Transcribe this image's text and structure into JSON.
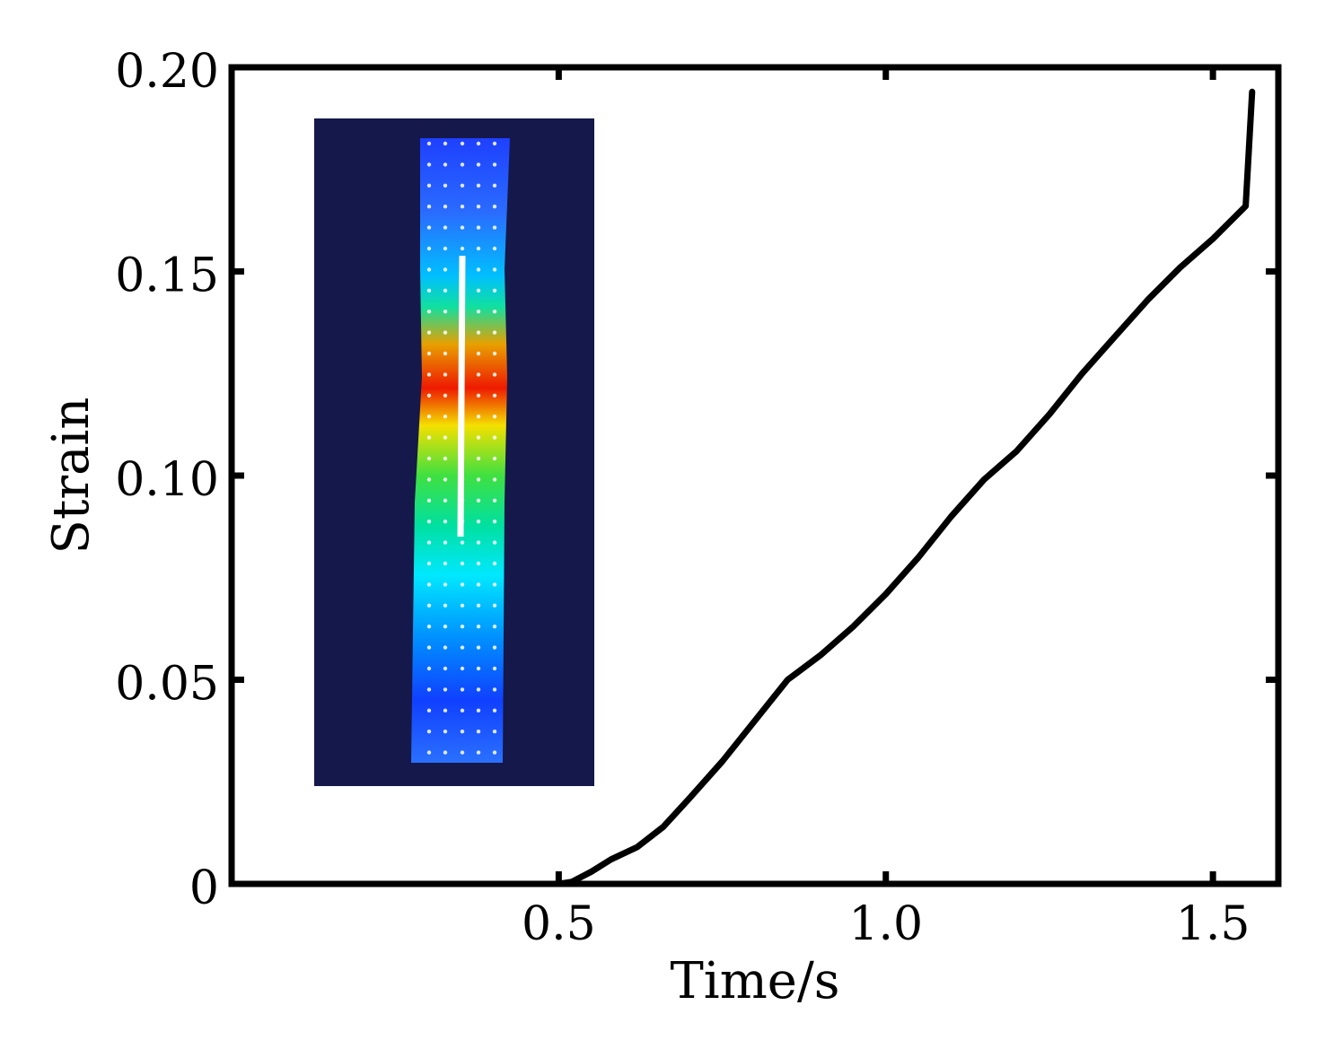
{
  "chart_data": {
    "type": "line",
    "title": "",
    "xlabel": "Time/s",
    "ylabel": "Strain",
    "xlim": [
      0,
      1.6
    ],
    "ylim": [
      0,
      0.2
    ],
    "x_ticks": [
      0.5,
      1.0,
      1.5
    ],
    "x_tick_labels": [
      "0.5",
      "1.0",
      "1.5"
    ],
    "y_ticks": [
      0,
      0.05,
      0.1,
      0.15,
      0.2
    ],
    "y_tick_labels": [
      "0",
      "0.05",
      "0.10",
      "0.15",
      "0.20"
    ],
    "grid": false,
    "legend": "none",
    "series": [
      {
        "color": "#000000",
        "x": [
          0,
          0.1,
          0.2,
          0.3,
          0.4,
          0.5,
          0.52,
          0.55,
          0.58,
          0.62,
          0.66,
          0.7,
          0.75,
          0.8,
          0.85,
          0.9,
          0.95,
          1.0,
          1.05,
          1.1,
          1.15,
          1.2,
          1.25,
          1.3,
          1.35,
          1.4,
          1.45,
          1.5,
          1.55,
          1.555,
          1.56
        ],
        "y": [
          0,
          0,
          0,
          0,
          0,
          0,
          0.0005,
          0.003,
          0.006,
          0.009,
          0.014,
          0.021,
          0.03,
          0.04,
          0.05,
          0.056,
          0.063,
          0.071,
          0.08,
          0.09,
          0.099,
          0.106,
          0.115,
          0.125,
          0.134,
          0.143,
          0.151,
          0.158,
          0.166,
          0.18,
          0.194
        ]
      }
    ],
    "inset": {
      "type": "heatmap-image",
      "background": "#15184a",
      "colormap": [
        "#0000c8",
        "#0060ff",
        "#00d8ff",
        "#00e060",
        "#e0e000",
        "#ff2000"
      ]
    }
  }
}
